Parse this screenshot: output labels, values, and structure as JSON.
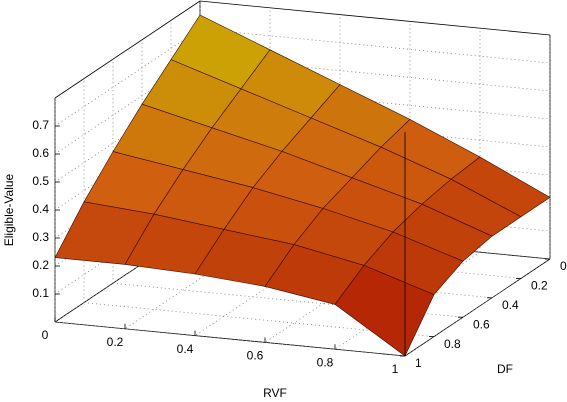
{
  "chart_data": {
    "type": "surface",
    "xlabel": "RVF",
    "ylabel": "DF",
    "zlabel": "Eligible-Value",
    "x": [
      0,
      0.2,
      0.4,
      0.6,
      0.8,
      1
    ],
    "y": [
      0,
      0.2,
      0.4,
      0.6,
      0.8,
      1
    ],
    "z": [
      [
        0.75,
        0.65,
        0.55,
        0.45,
        0.34,
        0.22
      ],
      [
        0.66,
        0.58,
        0.5,
        0.42,
        0.33,
        0.22
      ],
      [
        0.57,
        0.51,
        0.45,
        0.38,
        0.31,
        0.22
      ],
      [
        0.47,
        0.43,
        0.39,
        0.34,
        0.28,
        0.2
      ],
      [
        0.36,
        0.34,
        0.31,
        0.28,
        0.23,
        0.15
      ],
      [
        0.23,
        0.23,
        0.22,
        0.2,
        0.16,
        0.0
      ]
    ],
    "xlim": [
      0,
      1
    ],
    "ylim": [
      0,
      1
    ],
    "zlim": [
      0,
      0.8
    ],
    "xticks": [
      0,
      0.2,
      0.4,
      0.6,
      0.8,
      1
    ],
    "yticks": [
      0,
      0.2,
      0.4,
      0.6,
      0.8,
      1
    ],
    "zticks": [
      0.1,
      0.2,
      0.3,
      0.4,
      0.5,
      0.6,
      0.7
    ],
    "grid": true,
    "colormap": [
      "#a80c00",
      "#d06010",
      "#c8c400"
    ]
  }
}
